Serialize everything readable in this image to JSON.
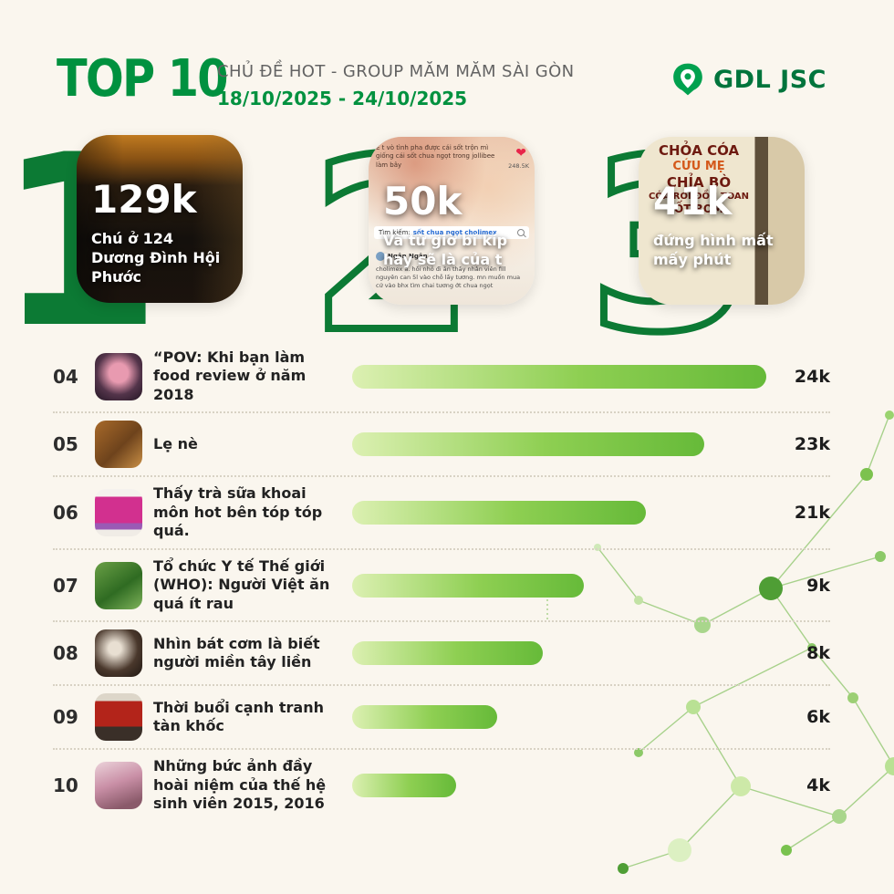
{
  "page": {
    "background": "#FAF6EE",
    "accent_green": "#00913F",
    "numeral_green": "#0C7A34"
  },
  "header": {
    "title": "TOP 10",
    "subtitle": "CHỦ ĐỀ HOT - GROUP MĂM MĂM SÀI GÒN",
    "date_range": "18/10/2025 - 24/10/2025",
    "logo_text": "GDL JSC"
  },
  "top3": [
    {
      "rank": "1",
      "value": "129k",
      "label": "Chú ở 124 Dương Đình Hội Phước"
    },
    {
      "rank": "2",
      "value": "50k",
      "label": "Và từ giờ bí kíp hay sẽ là của t",
      "photo": {
        "top_caption": "Ề t vò tình pha được cái sốt trộn mì giống cái sốt chua ngọt trong jollibee làm bây",
        "reaction_count": "248.5K",
        "search_label": "Tìm kiếm:",
        "search_query": "sốt chua ngọt cholimex",
        "username": "Ngân Ngân",
        "caption": "cholimex á. hồi nhỏ đi ăn thấy nhân viên fill nguyên can 5l vào chỗ lấy tương. mn muốn mua cứ vào bhx tìm chai tương ớt chua ngọt"
      }
    },
    {
      "rank": "3",
      "value": "41k",
      "label": "đứng hình mất mấy phút",
      "photo": {
        "sign_lines": [
          "CHỎA CÓA",
          "CỨU MẸ",
          "CHỈA BÒ",
          "CÓA ROI ĐỒN TOAN",
          "ỐT ROM"
        ]
      }
    }
  ],
  "ranking": {
    "rows": [
      {
        "rank": "04",
        "label": "“POV: Khi bạn làm food review ở năm 2018",
        "value": "24k",
        "bar_pct": 100
      },
      {
        "rank": "05",
        "label": "Lẹ nè",
        "value": "23k",
        "bar_pct": 85
      },
      {
        "rank": "06",
        "label": "Thấy trà sữa khoai môn hot bên tóp tóp quá.",
        "value": "21k",
        "bar_pct": 71
      },
      {
        "rank": "07",
        "label": "Tổ chức Y tế Thế giới (WHO): Người Việt ăn quá ít rau",
        "value": "9k",
        "bar_pct": 56
      },
      {
        "rank": "08",
        "label": "Nhìn bát cơm là biết người miền tây liền",
        "value": "8k",
        "bar_pct": 46
      },
      {
        "rank": "09",
        "label": "Thời buổi cạnh tranh tàn khốc",
        "value": "6k",
        "bar_pct": 35
      },
      {
        "rank": "10",
        "label": "Những bức ảnh đầy hoài niệm của thế hệ sinh viên 2015, 2016",
        "value": "4k",
        "bar_pct": 25
      }
    ]
  },
  "chart_data": {
    "type": "bar",
    "orientation": "horizontal",
    "title": "TOP 10 CHỦ ĐỀ HOT - GROUP MĂM MĂM SÀI GÒN",
    "subtitle": "18/10/2025 - 24/10/2025",
    "categories": [
      "Chú ở 124 Dương Đình Hội Phước",
      "Và từ giờ bí kíp hay sẽ là của t",
      "đứng hình mất mấy phút",
      "“POV: Khi bạn làm food review ở năm 2018",
      "Lẹ nè",
      "Thấy trà sữa khoai môn hot bên tóp tóp quá.",
      "Tổ chức Y tế Thế giới (WHO): Người Việt ăn quá ít rau",
      "Nhìn bát cơm là biết người miền tây liền",
      "Thời buổi cạnh tranh tàn khốc",
      "Những bức ảnh đầy hoài niệm của thế hệ sinh viên 2015, 2016"
    ],
    "values": [
      129000,
      50000,
      41000,
      24000,
      23000,
      21000,
      9000,
      8000,
      6000,
      4000
    ],
    "values_text": [
      "129k",
      "50k",
      "41k",
      "24k",
      "23k",
      "21k",
      "9k",
      "8k",
      "6k",
      "4k"
    ],
    "bar_gradient": [
      "#DCF0B2",
      "#66BA39"
    ],
    "legend": "none",
    "grid": "off"
  }
}
